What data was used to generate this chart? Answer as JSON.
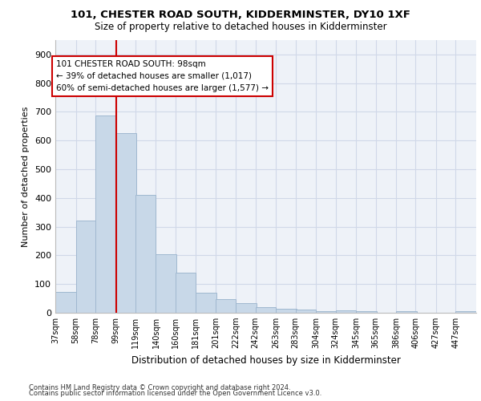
{
  "title1": "101, CHESTER ROAD SOUTH, KIDDERMINSTER, DY10 1XF",
  "title2": "Size of property relative to detached houses in Kidderminster",
  "xlabel": "Distribution of detached houses by size in Kidderminster",
  "ylabel": "Number of detached properties",
  "footer1": "Contains HM Land Registry data © Crown copyright and database right 2024.",
  "footer2": "Contains public sector information licensed under the Open Government Licence v3.0.",
  "bins": [
    37,
    58,
    78,
    99,
    119,
    140,
    160,
    181,
    201,
    222,
    242,
    263,
    283,
    304,
    324,
    345,
    365,
    386,
    406,
    427,
    447
  ],
  "values": [
    72,
    320,
    688,
    625,
    410,
    205,
    140,
    70,
    47,
    33,
    20,
    15,
    10,
    5,
    7,
    5,
    1,
    5,
    0,
    0,
    5
  ],
  "bar_color": "#c8d8e8",
  "bar_edge_color": "#a0b8d0",
  "grid_color": "#d0d8e8",
  "background_color": "#eef2f8",
  "vline_x": 99,
  "vline_color": "#cc0000",
  "annotation_text": "101 CHESTER ROAD SOUTH: 98sqm\n← 39% of detached houses are smaller (1,017)\n60% of semi-detached houses are larger (1,577) →",
  "annotation_box_color": "#cc0000",
  "ylim": [
    0,
    950
  ],
  "yticks": [
    0,
    100,
    200,
    300,
    400,
    500,
    600,
    700,
    800,
    900
  ]
}
